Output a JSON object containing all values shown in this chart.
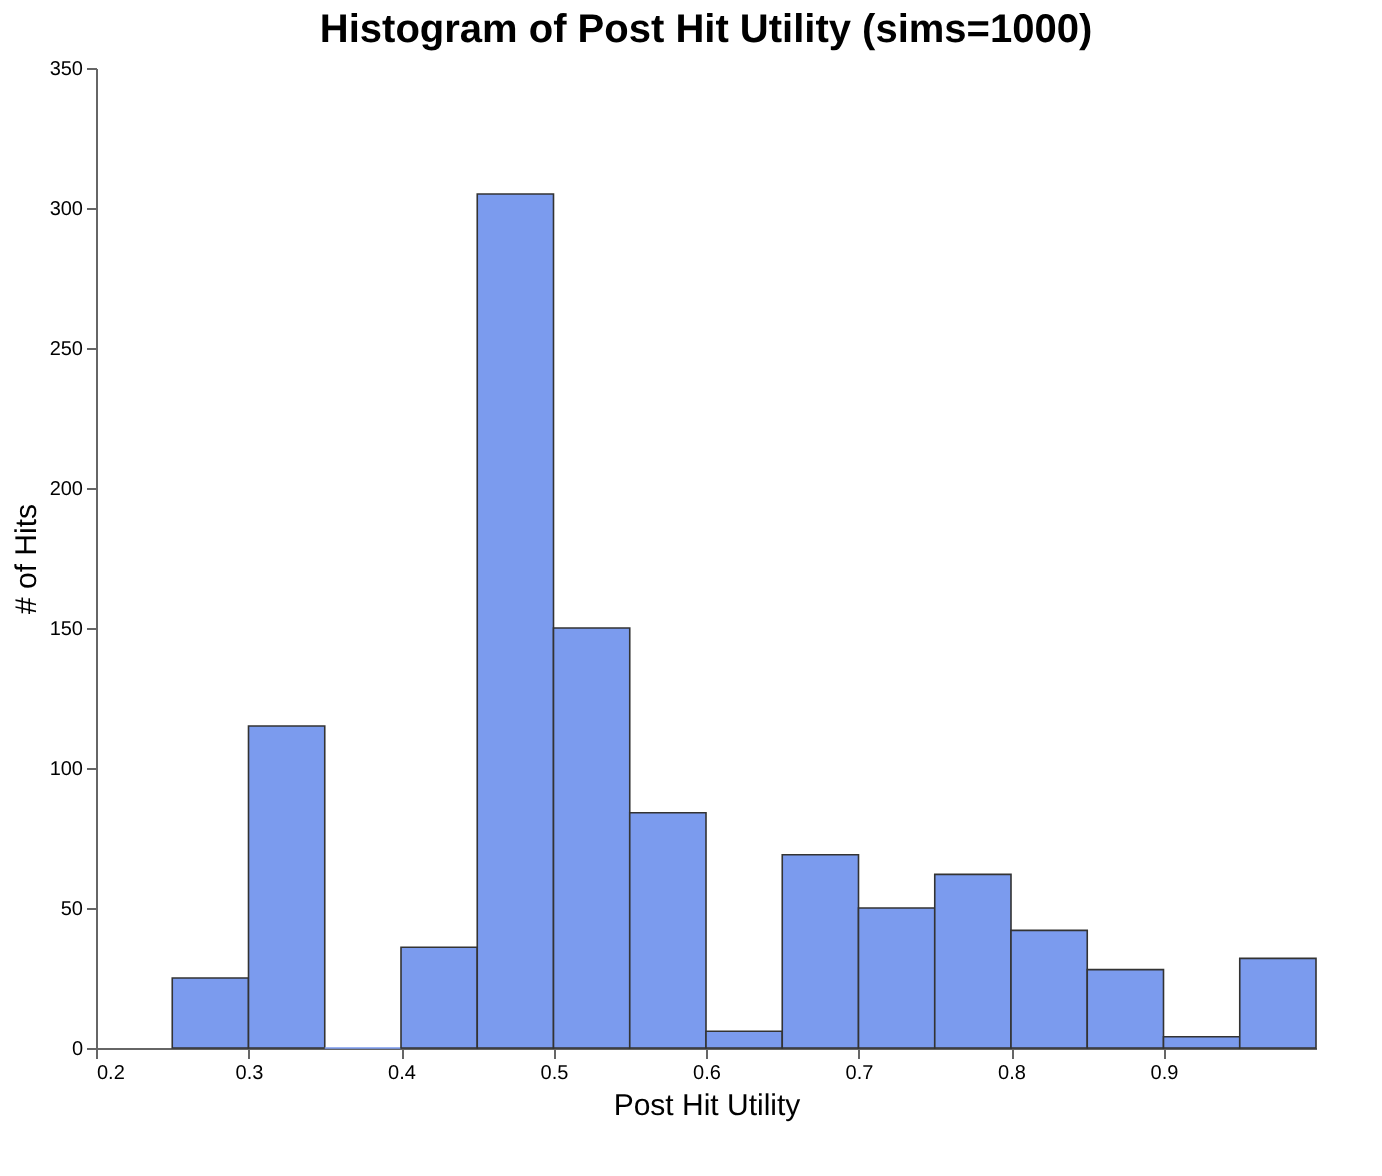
{
  "chart_data": {
    "type": "histogram",
    "title": "Histogram of Post Hit Utility (sims=1000)",
    "xlabel": "Post Hit Utility",
    "ylabel": "# of Hits",
    "bins": [
      0.25,
      0.3,
      0.35,
      0.4,
      0.45,
      0.5,
      0.55,
      0.6,
      0.65,
      0.7,
      0.75,
      0.8,
      0.85,
      0.9,
      0.95,
      1.0
    ],
    "values": [
      25,
      115,
      0,
      36,
      305,
      150,
      84,
      6,
      69,
      50,
      62,
      42,
      28,
      4,
      32
    ],
    "color": "#7b9bee",
    "xlim": [
      0.2,
      1.0
    ],
    "xticks": [
      0.2,
      0.3,
      0.4,
      0.5,
      0.6,
      0.7,
      0.8,
      0.9
    ],
    "ylim": [
      0,
      350
    ],
    "yticks": [
      0,
      50,
      100,
      150,
      200,
      250,
      300,
      350
    ],
    "grid": false
  }
}
